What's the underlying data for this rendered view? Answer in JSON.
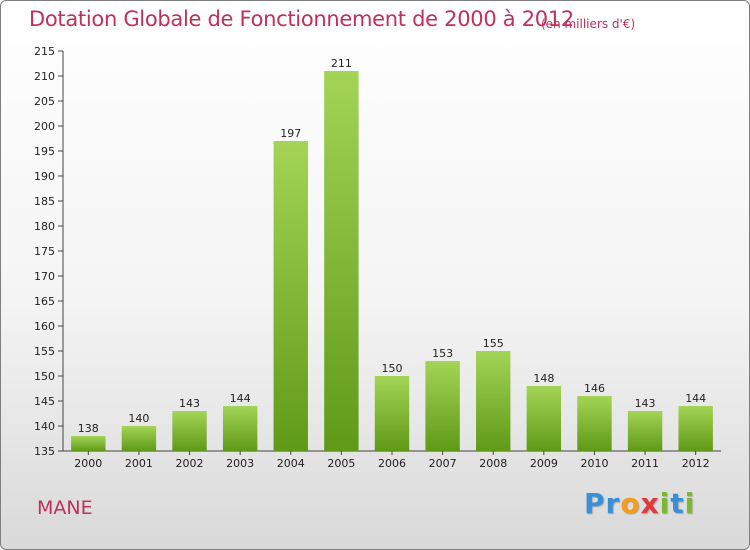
{
  "header": {
    "title": "Dotation Globale de Fonctionnement de 2000 à 2012",
    "unit": "(en milliers d'€)"
  },
  "footer": {
    "commune": "MANE",
    "logo_letters": [
      {
        "char": "P",
        "color": "#3a8fd6"
      },
      {
        "char": "r",
        "color": "#3a8fd6"
      },
      {
        "char": "o",
        "color": "#f39c1e"
      },
      {
        "char": "x",
        "color": "#e03a3a"
      },
      {
        "char": "i",
        "color": "#7cb82f"
      },
      {
        "char": "t",
        "color": "#3a8fd6"
      },
      {
        "char": "i",
        "color": "#7cb82f"
      }
    ]
  },
  "chart_data": {
    "type": "bar",
    "title": "Dotation Globale de Fonctionnement de 2000 à 2012",
    "subtitle": "(en milliers d'€)",
    "xlabel": "",
    "ylabel": "",
    "categories": [
      "2000",
      "2001",
      "2002",
      "2003",
      "2004",
      "2005",
      "2006",
      "2007",
      "2008",
      "2009",
      "2010",
      "2011",
      "2012"
    ],
    "values": [
      138,
      140,
      143,
      144,
      197,
      211,
      150,
      153,
      155,
      148,
      146,
      143,
      144
    ],
    "ylim": [
      135,
      215
    ],
    "yticks": [
      135,
      140,
      145,
      150,
      155,
      160,
      165,
      170,
      175,
      180,
      185,
      190,
      195,
      200,
      205,
      210,
      215
    ],
    "grid": false,
    "bar_color_top": "#a3d456",
    "bar_color_bottom": "#5f9a17",
    "title_color": "#c0305a"
  }
}
